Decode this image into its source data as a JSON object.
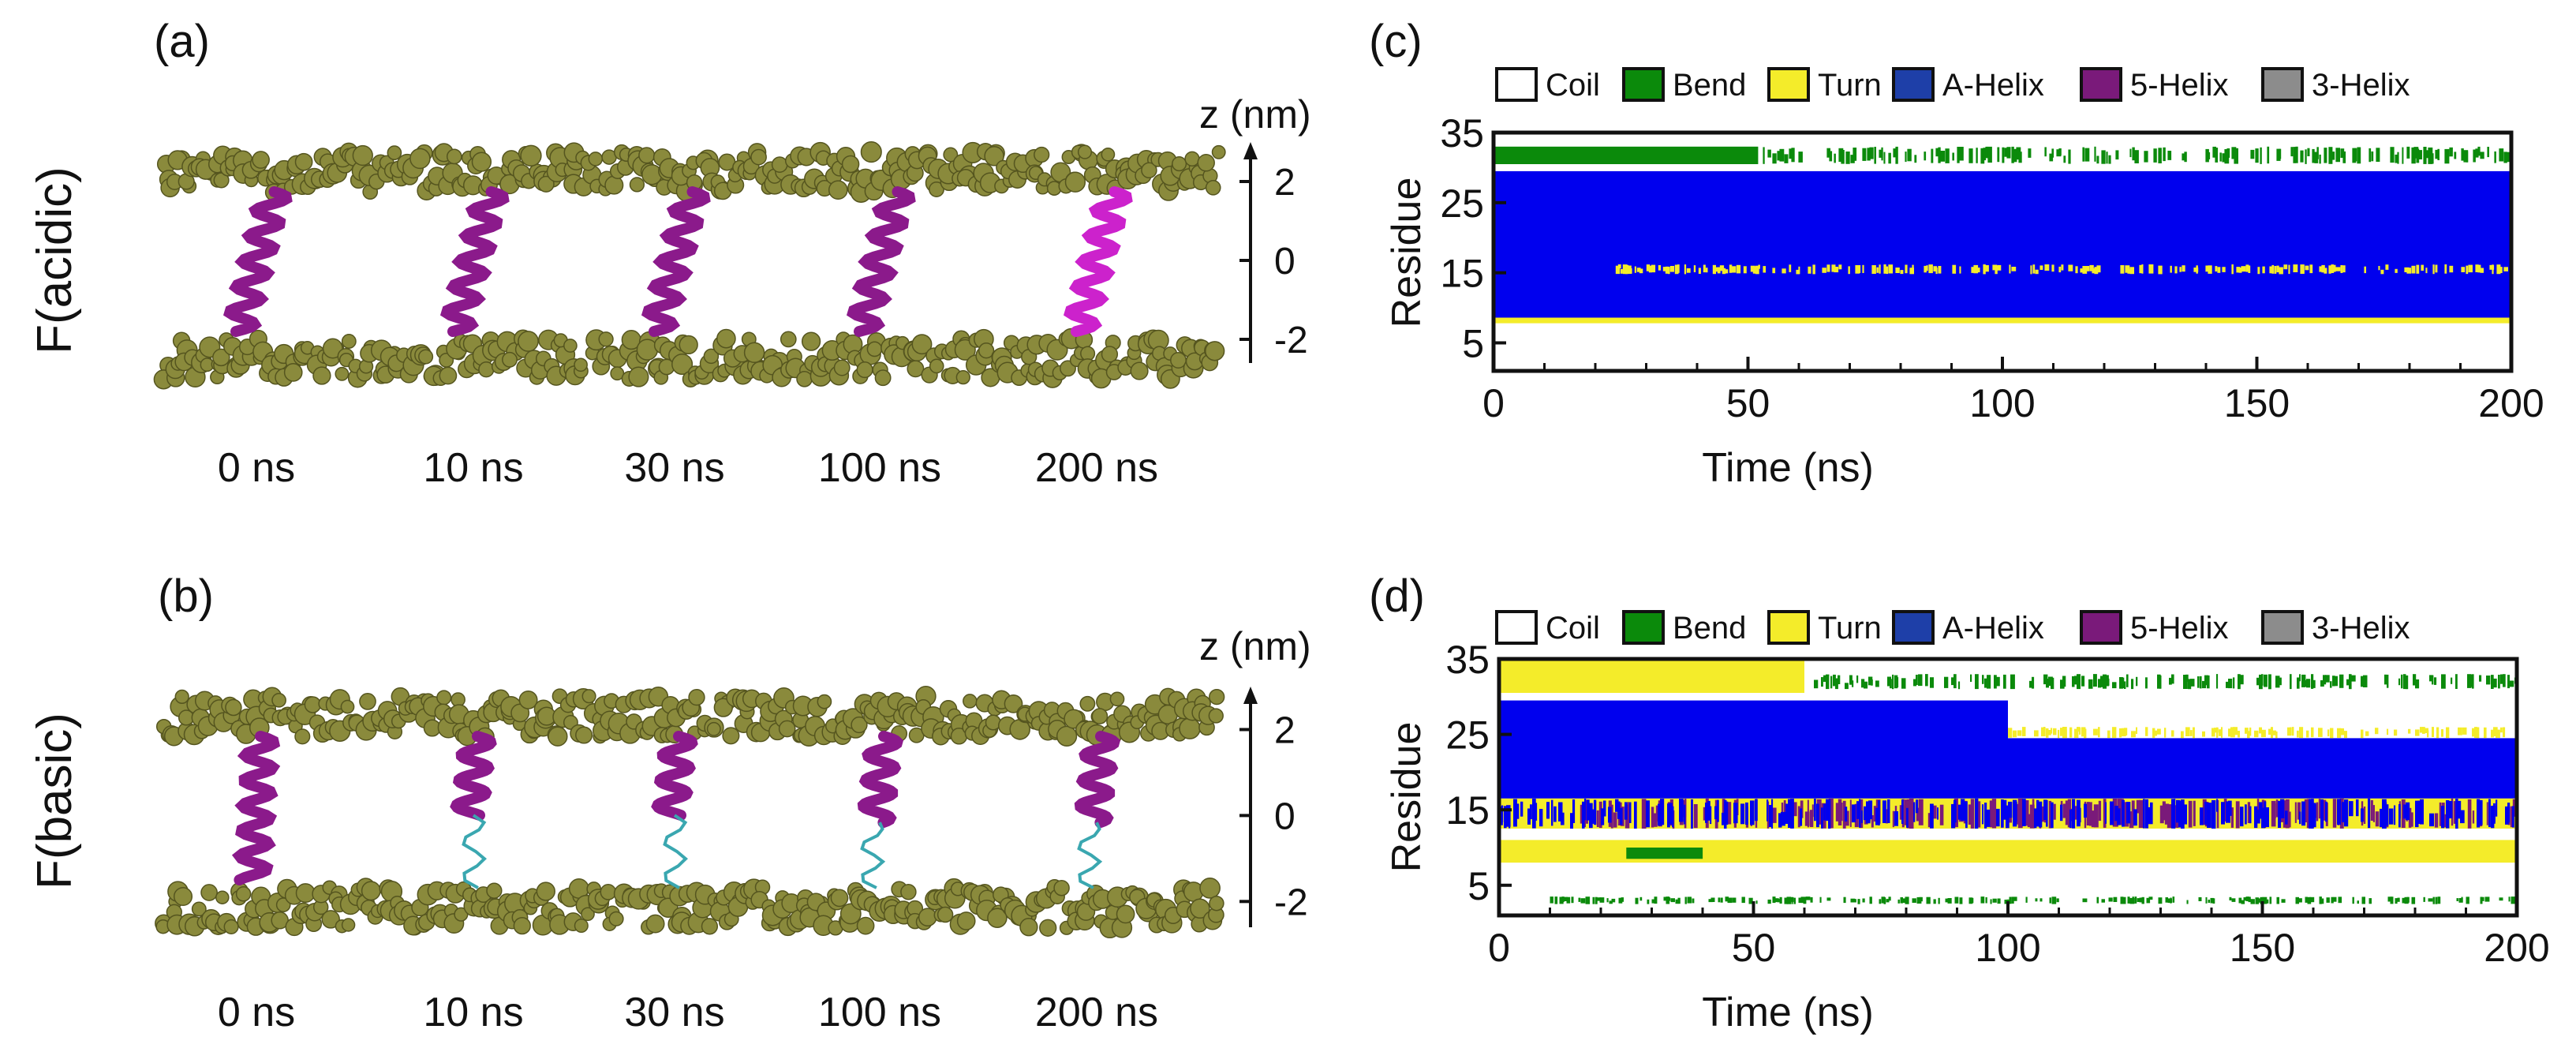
{
  "panel_labels": [
    "(a)",
    "(b)",
    "(c)",
    "(d)"
  ],
  "row_labels": [
    "F(acidic)",
    "F(basic)"
  ],
  "time_labels": [
    "0 ns",
    "10 ns",
    "30 ns",
    "100 ns",
    "200 ns"
  ],
  "colors": {
    "lipid_bead": "#8a8a3c",
    "helix_purple": "#8b1a8b",
    "helix_magenta": "#cc22cc",
    "coil_teal": "#3aa7b0"
  },
  "chart_data": [
    {
      "id": "z-axis-a",
      "type": "axis",
      "title": "z (nm)",
      "ticks": [
        2,
        0,
        -2
      ],
      "tick_labels": [
        "2",
        "0",
        "-2"
      ],
      "ylim": [
        -2.6,
        3.0
      ]
    },
    {
      "id": "z-axis-b",
      "type": "axis",
      "title": "z (nm)",
      "ticks": [
        2,
        0,
        -2
      ],
      "tick_labels": [
        "2",
        "0",
        "-2"
      ],
      "ylim": [
        -2.6,
        3.0
      ]
    },
    {
      "id": "dssp-c",
      "type": "heatmap",
      "legend": [
        {
          "name": "Coil",
          "color": "#ffffff"
        },
        {
          "name": "Bend",
          "color": "#0b8a0b"
        },
        {
          "name": "Turn",
          "color": "#f4ec2a"
        },
        {
          "name": "A-Helix",
          "color": "#1e3fa8"
        },
        {
          "name": "5-Helix",
          "color": "#7a1a7a"
        },
        {
          "name": "3-Helix",
          "color": "#8c8c8c"
        }
      ],
      "xlabel": "Time (ns)",
      "ylabel": "Residue",
      "xlim": [
        0,
        200
      ],
      "ylim": [
        1,
        35
      ],
      "x_ticks": [
        0,
        50,
        100,
        150,
        200
      ],
      "y_ticks": [
        5,
        15,
        25,
        35
      ],
      "x_tick_labels": [
        "0",
        "50",
        "100",
        "150",
        "200"
      ],
      "y_tick_labels": [
        "5",
        "15",
        "25",
        "35"
      ],
      "bands": [
        {
          "state": "A-Helix",
          "residues": [
            8.5,
            29.5
          ],
          "time": [
            0,
            200
          ],
          "color": "#0000ee"
        },
        {
          "state": "Bend",
          "residues": [
            30.5,
            33
          ],
          "time": [
            0,
            52
          ],
          "color": "#0b8a0b"
        },
        {
          "state": "Bend",
          "residues": [
            30.5,
            33
          ],
          "time": [
            52,
            200
          ],
          "color": "#0b8a0b",
          "sparse": true
        },
        {
          "state": "Turn",
          "residues": [
            7.8,
            8.6
          ],
          "time": [
            0,
            200
          ],
          "color": "#f4ec2a"
        },
        {
          "state": "Turn",
          "residues": [
            14.8,
            16.2
          ],
          "time": [
            24,
            52
          ],
          "color": "#f4ec2a",
          "sparse": true
        },
        {
          "state": "Turn",
          "residues": [
            14.8,
            16.2
          ],
          "time": [
            52,
            200
          ],
          "color": "#f4ec2a",
          "sparse": true
        }
      ]
    },
    {
      "id": "dssp-d",
      "type": "heatmap",
      "legend": [
        {
          "name": "Coil",
          "color": "#ffffff"
        },
        {
          "name": "Bend",
          "color": "#0b8a0b"
        },
        {
          "name": "Turn",
          "color": "#f4ec2a"
        },
        {
          "name": "A-Helix",
          "color": "#1e3fa8"
        },
        {
          "name": "5-Helix",
          "color": "#7a1a7a"
        },
        {
          "name": "3-Helix",
          "color": "#8c8c8c"
        }
      ],
      "xlabel": "Time (ns)",
      "ylabel": "Residue",
      "xlim": [
        0,
        200
      ],
      "ylim": [
        1,
        35
      ],
      "x_ticks": [
        0,
        50,
        100,
        150,
        200
      ],
      "y_ticks": [
        5,
        15,
        25,
        35
      ],
      "x_tick_labels": [
        "0",
        "50",
        "100",
        "150",
        "200"
      ],
      "y_tick_labels": [
        "5",
        "15",
        "25",
        "35"
      ],
      "bands": [
        {
          "state": "A-Helix",
          "residues": [
            16.5,
            29.5
          ],
          "time": [
            0,
            100
          ],
          "color": "#0000ee"
        },
        {
          "state": "A-Helix",
          "residues": [
            16.5,
            24.5
          ],
          "time": [
            100,
            200
          ],
          "color": "#0000ee"
        },
        {
          "state": "Turn",
          "residues": [
            24.5,
            26
          ],
          "time": [
            100,
            200
          ],
          "color": "#f4ec2a",
          "sparse": true
        },
        {
          "state": "Turn",
          "residues": [
            30.5,
            35
          ],
          "time": [
            0,
            60
          ],
          "color": "#f4ec2a"
        },
        {
          "state": "Turn",
          "residues": [
            12.5,
            16.5
          ],
          "time": [
            0,
            200
          ],
          "color": "#f4ec2a"
        },
        {
          "state": "5-Helix",
          "residues": [
            12.5,
            16.5
          ],
          "time": [
            15,
            200
          ],
          "color": "#7a1a7a",
          "sparse": true
        },
        {
          "state": "A-Helix",
          "residues": [
            12.5,
            16.5
          ],
          "time": [
            0,
            200
          ],
          "color": "#0000ee",
          "sparse": true
        },
        {
          "state": "Turn",
          "residues": [
            8,
            11
          ],
          "time": [
            0,
            200
          ],
          "color": "#f4ec2a"
        },
        {
          "state": "Bend",
          "residues": [
            31,
            33
          ],
          "time": [
            60,
            200
          ],
          "color": "#0b8a0b",
          "sparse": true
        },
        {
          "state": "Bend",
          "residues": [
            8.5,
            10
          ],
          "time": [
            25,
            40
          ],
          "color": "#0b8a0b"
        },
        {
          "state": "Bend",
          "residues": [
            2.5,
            3.5
          ],
          "time": [
            10,
            200
          ],
          "color": "#0b8a0b",
          "sparse": true
        }
      ]
    }
  ]
}
